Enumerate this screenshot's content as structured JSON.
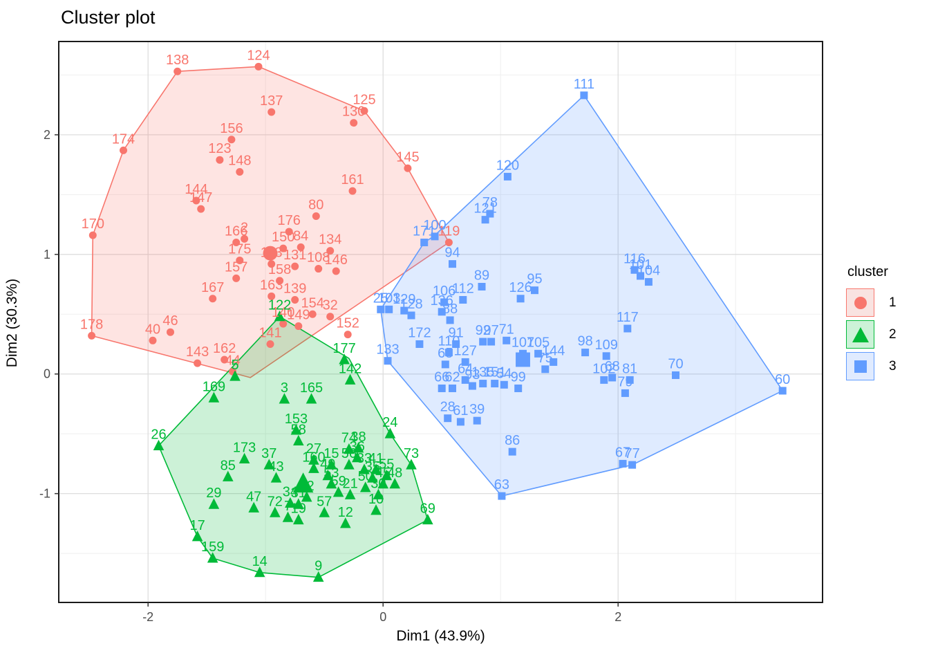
{
  "page_title": "Cluster plot",
  "chart_data": {
    "type": "scatter",
    "title": "Cluster plot",
    "xlabel": "Dim1 (43.9%)",
    "ylabel": "Dim2 (30.3%)",
    "xlim": [
      -2.76,
      3.74
    ],
    "ylim": [
      -1.91,
      2.78
    ],
    "x_ticks": [
      -2,
      0,
      2
    ],
    "x_minor_ticks": [
      -1,
      1,
      3
    ],
    "y_ticks": [
      -1,
      0,
      1,
      2
    ],
    "y_minor_ticks": [
      -1.5,
      -0.5,
      0.5,
      1.5,
      2.5
    ],
    "grid": true,
    "legend": {
      "title": "cluster",
      "position": "right",
      "entries": [
        {
          "label": "1",
          "symbol": "circle",
          "color": "#F8766D",
          "fill_light": "#F9E3E1"
        },
        {
          "label": "2",
          "symbol": "triangle",
          "color": "#00BA38",
          "fill_light": "#CCF2D8"
        },
        {
          "label": "3",
          "symbol": "square",
          "color": "#619CFF",
          "fill_light": "#E0EBFF"
        }
      ]
    },
    "clusters": [
      {
        "name": "1",
        "symbol": "circle",
        "color": "#F8766D",
        "centroid": [
          -0.96,
          1.01
        ],
        "hull": [
          [
            -2.21,
            1.87
          ],
          [
            -1.75,
            2.53
          ],
          [
            -1.06,
            2.57
          ],
          [
            -0.16,
            2.2
          ],
          [
            0.21,
            1.72
          ],
          [
            0.56,
            1.1
          ],
          [
            -1.13,
            -0.03
          ],
          [
            -1.28,
            0.01
          ],
          [
            -2.48,
            0.32
          ],
          [
            -2.47,
            1.16
          ]
        ],
        "points": [
          [
            "138",
            -1.75,
            2.53
          ],
          [
            "124",
            -1.06,
            2.57
          ],
          [
            "137",
            -0.95,
            2.19
          ],
          [
            "125",
            -0.16,
            2.2
          ],
          [
            "130",
            -0.25,
            2.1
          ],
          [
            "156",
            -1.29,
            1.96
          ],
          [
            "174",
            -2.21,
            1.87
          ],
          [
            "123",
            -1.39,
            1.79
          ],
          [
            "148",
            -1.22,
            1.69
          ],
          [
            "145",
            0.21,
            1.72
          ],
          [
            "144",
            -1.59,
            1.45
          ],
          [
            "147",
            -1.55,
            1.38
          ],
          [
            "161",
            -0.26,
            1.53
          ],
          [
            "170",
            -2.47,
            1.16
          ],
          [
            "80",
            -0.57,
            1.32
          ],
          [
            "176",
            -0.8,
            1.19
          ],
          [
            "2",
            -1.18,
            1.13
          ],
          [
            "166",
            -1.25,
            1.1
          ],
          [
            "150",
            -0.85,
            1.05
          ],
          [
            "84",
            -0.7,
            1.06
          ],
          [
            "134",
            -0.45,
            1.03
          ],
          [
            "113",
            -0.95,
            0.92
          ],
          [
            "131",
            -0.75,
            0.9
          ],
          [
            "108",
            -0.55,
            0.88
          ],
          [
            "146",
            -0.4,
            0.86
          ],
          [
            "158",
            -0.88,
            0.78
          ],
          [
            "175",
            -1.22,
            0.95
          ],
          [
            "157",
            -1.25,
            0.8
          ],
          [
            "167",
            -1.45,
            0.63
          ],
          [
            "163",
            -0.95,
            0.65
          ],
          [
            "139",
            -0.75,
            0.62
          ],
          [
            "154",
            -0.6,
            0.5
          ],
          [
            "32",
            -0.45,
            0.48
          ],
          [
            "149",
            -0.72,
            0.4
          ],
          [
            "140",
            -0.85,
            0.42
          ],
          [
            "141",
            -0.96,
            0.25
          ],
          [
            "152",
            -0.3,
            0.33
          ],
          [
            "46",
            -1.81,
            0.35
          ],
          [
            "40",
            -1.96,
            0.28
          ],
          [
            "178",
            -2.48,
            0.32
          ],
          [
            "143",
            -1.58,
            0.09
          ],
          [
            "162",
            -1.35,
            0.12
          ],
          [
            "44",
            -1.28,
            0.02
          ],
          [
            "119",
            0.56,
            1.1
          ]
        ]
      },
      {
        "name": "2",
        "symbol": "triangle",
        "color": "#00BA38",
        "centroid": [
          -0.68,
          -0.92
        ],
        "hull": [
          [
            -0.88,
            0.48
          ],
          [
            -0.29,
            0.13
          ],
          [
            0.06,
            -0.5
          ],
          [
            0.24,
            -0.76
          ],
          [
            0.38,
            -1.22
          ],
          [
            -0.55,
            -1.7
          ],
          [
            -1.05,
            -1.66
          ],
          [
            -1.45,
            -1.54
          ],
          [
            -1.58,
            -1.36
          ],
          [
            -1.91,
            -0.6
          ]
        ],
        "points": [
          [
            "122",
            -0.88,
            0.48
          ],
          [
            "5",
            -1.26,
            -0.02
          ],
          [
            "169",
            -1.44,
            -0.2
          ],
          [
            "3",
            -0.84,
            -0.21
          ],
          [
            "165",
            -0.61,
            -0.21
          ],
          [
            "177",
            -0.33,
            0.12
          ],
          [
            "142",
            -0.28,
            -0.05
          ],
          [
            "26",
            -1.91,
            -0.6
          ],
          [
            "24",
            0.06,
            -0.5
          ],
          [
            "74",
            -0.29,
            -0.63
          ],
          [
            "38",
            -0.21,
            -0.62
          ],
          [
            "36",
            -0.22,
            -0.7
          ],
          [
            "73",
            0.24,
            -0.76
          ],
          [
            "41",
            -0.06,
            -0.8
          ],
          [
            "33",
            -0.16,
            -0.8
          ],
          [
            "35",
            -0.09,
            -0.87
          ],
          [
            "45",
            0.0,
            -0.92
          ],
          [
            "48",
            0.1,
            -0.92
          ],
          [
            "55",
            0.03,
            -0.85
          ],
          [
            "56",
            -0.29,
            -0.76
          ],
          [
            "15",
            -0.44,
            -0.76
          ],
          [
            "27",
            -0.59,
            -0.72
          ],
          [
            "153",
            -0.74,
            -0.47
          ],
          [
            "58",
            -0.72,
            -0.56
          ],
          [
            "173",
            -1.18,
            -0.71
          ],
          [
            "37",
            -0.97,
            -0.76
          ],
          [
            "85",
            -1.32,
            -0.86
          ],
          [
            "43",
            -0.91,
            -0.87
          ],
          [
            "160",
            -0.59,
            -0.79
          ],
          [
            "49",
            -0.47,
            -0.85
          ],
          [
            "53",
            -0.44,
            -0.92
          ],
          [
            "50",
            -0.15,
            -0.95
          ],
          [
            "30",
            -0.04,
            -1.01
          ],
          [
            "29",
            -1.44,
            -1.09
          ],
          [
            "52",
            -0.65,
            -1.03
          ],
          [
            "34",
            -0.79,
            -1.08
          ],
          [
            "31",
            -0.72,
            -1.09
          ],
          [
            "59",
            -0.38,
            -0.99
          ],
          [
            "21",
            -0.28,
            -1.01
          ],
          [
            "57",
            -0.5,
            -1.16
          ],
          [
            "12",
            -0.32,
            -1.25
          ],
          [
            "10",
            -0.06,
            -1.14
          ],
          [
            "69",
            0.38,
            -1.22
          ],
          [
            "47",
            -1.1,
            -1.12
          ],
          [
            "72",
            -0.92,
            -1.16
          ],
          [
            "19",
            -0.72,
            -1.22
          ],
          [
            "7",
            -0.81,
            -1.2
          ],
          [
            "17",
            -1.58,
            -1.36
          ],
          [
            "159",
            -1.45,
            -1.54
          ],
          [
            "14",
            -1.05,
            -1.66
          ],
          [
            "9",
            -0.55,
            -1.7
          ]
        ]
      },
      {
        "name": "3",
        "symbol": "square",
        "color": "#619CFF",
        "centroid": [
          1.19,
          0.12
        ],
        "hull": [
          [
            1.71,
            2.33
          ],
          [
            3.4,
            -0.14
          ],
          [
            2.12,
            -0.76
          ],
          [
            1.01,
            -1.02
          ],
          [
            0.04,
            0.11
          ],
          [
            -0.02,
            0.54
          ],
          [
            0.35,
            1.1
          ],
          [
            0.43,
            1.15
          ]
        ],
        "points": [
          [
            "111",
            1.71,
            2.33
          ],
          [
            "120",
            1.06,
            1.65
          ],
          [
            "78",
            0.91,
            1.34
          ],
          [
            "121",
            0.87,
            1.29
          ],
          [
            "100",
            0.44,
            1.15
          ],
          [
            "171",
            0.35,
            1.1
          ],
          [
            "94",
            0.59,
            0.92
          ],
          [
            "89",
            0.84,
            0.73
          ],
          [
            "95",
            1.29,
            0.7
          ],
          [
            "126",
            1.17,
            0.63
          ],
          [
            "106",
            0.52,
            0.6
          ],
          [
            "112",
            0.68,
            0.62
          ],
          [
            "136",
            0.5,
            0.52
          ],
          [
            "88",
            0.57,
            0.45
          ],
          [
            "25",
            -0.02,
            0.54
          ],
          [
            "103",
            0.05,
            0.54
          ],
          [
            "128",
            0.24,
            0.49
          ],
          [
            "129",
            0.18,
            0.53
          ],
          [
            "91",
            0.62,
            0.25
          ],
          [
            "172",
            0.31,
            0.25
          ],
          [
            "133",
            0.04,
            0.11
          ],
          [
            "110",
            0.56,
            0.18
          ],
          [
            "107",
            1.19,
            0.17
          ],
          [
            "105",
            1.32,
            0.17
          ],
          [
            "92",
            0.85,
            0.27
          ],
          [
            "97",
            0.92,
            0.27
          ],
          [
            "71",
            1.05,
            0.28
          ],
          [
            "144",
            1.45,
            0.1
          ],
          [
            "75",
            1.38,
            0.04
          ],
          [
            "98",
            1.72,
            0.18
          ],
          [
            "109",
            1.9,
            0.15
          ],
          [
            "102",
            1.88,
            -0.05
          ],
          [
            "68",
            1.95,
            -0.03
          ],
          [
            "81",
            2.1,
            -0.05
          ],
          [
            "79",
            2.06,
            -0.16
          ],
          [
            "65",
            0.53,
            0.08
          ],
          [
            "127",
            0.7,
            0.1
          ],
          [
            "64",
            0.7,
            -0.05
          ],
          [
            "135",
            0.85,
            -0.08
          ],
          [
            "151",
            0.95,
            -0.08
          ],
          [
            "54",
            1.03,
            -0.09
          ],
          [
            "99",
            1.15,
            -0.12
          ],
          [
            "93",
            0.76,
            -0.1
          ],
          [
            "66",
            0.5,
            -0.12
          ],
          [
            "62",
            0.59,
            -0.12
          ],
          [
            "28",
            0.55,
            -0.37
          ],
          [
            "61",
            0.66,
            -0.4
          ],
          [
            "39",
            0.8,
            -0.39
          ],
          [
            "86",
            1.1,
            -0.65
          ],
          [
            "63",
            1.01,
            -1.02
          ],
          [
            "67",
            2.04,
            -0.75
          ],
          [
            "77",
            2.12,
            -0.76
          ],
          [
            "117",
            2.08,
            0.38
          ],
          [
            "116",
            2.14,
            0.87
          ],
          [
            "101",
            2.19,
            0.82
          ],
          [
            "104",
            2.26,
            0.77
          ],
          [
            "70",
            2.49,
            -0.01
          ],
          [
            "60",
            3.4,
            -0.14
          ]
        ]
      }
    ]
  }
}
